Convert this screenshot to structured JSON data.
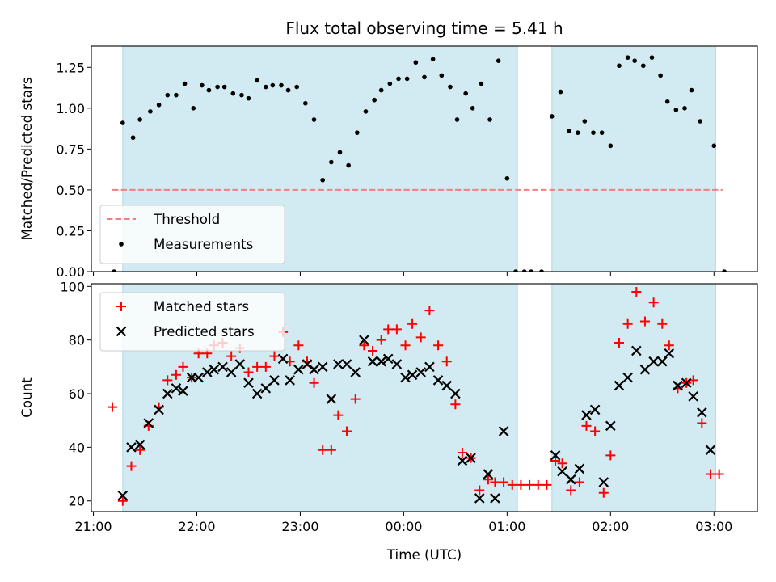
{
  "chart_data": [
    {
      "type": "scatter",
      "panel": "top",
      "title": "Flux total observing time = 5.41 h",
      "xlabel": "",
      "ylabel": "Matched/Predicted stars",
      "xlim_hours": [
        20.98,
        27.42
      ],
      "ylim": [
        0.0,
        1.38
      ],
      "yticks": [
        "0.00",
        "0.25",
        "0.50",
        "0.75",
        "1.00",
        "1.25"
      ],
      "legend_position": "lower left",
      "shaded_intervals": [
        [
          "21:17",
          "01:06"
        ],
        [
          "01:26",
          "03:01"
        ]
      ],
      "shade_color": "#add8e6",
      "threshold": {
        "name": "Threshold",
        "value": 0.5,
        "x_start": "21:11",
        "x_end": "03:05",
        "color": "#f08080"
      },
      "series": [
        {
          "name": "Measurements",
          "marker": "dot",
          "color": "#000000",
          "points": [
            [
              "21:12",
              0.0
            ],
            [
              "21:17",
              0.91
            ],
            [
              "21:23",
              0.82
            ],
            [
              "21:27",
              0.93
            ],
            [
              "21:33",
              0.98
            ],
            [
              "21:38",
              1.02
            ],
            [
              "21:43",
              1.08
            ],
            [
              "21:48",
              1.08
            ],
            [
              "21:53",
              1.15
            ],
            [
              "21:58",
              1.0
            ],
            [
              "22:03",
              1.14
            ],
            [
              "22:07",
              1.11
            ],
            [
              "22:12",
              1.13
            ],
            [
              "22:16",
              1.13
            ],
            [
              "22:21",
              1.09
            ],
            [
              "22:26",
              1.08
            ],
            [
              "22:30",
              1.06
            ],
            [
              "22:35",
              1.17
            ],
            [
              "22:40",
              1.13
            ],
            [
              "22:44",
              1.14
            ],
            [
              "22:49",
              1.14
            ],
            [
              "22:53",
              1.11
            ],
            [
              "22:58",
              1.13
            ],
            [
              "23:03",
              1.03
            ],
            [
              "23:08",
              0.93
            ],
            [
              "23:13",
              0.56
            ],
            [
              "23:18",
              0.67
            ],
            [
              "23:23",
              0.73
            ],
            [
              "23:28",
              0.65
            ],
            [
              "23:33",
              0.85
            ],
            [
              "23:38",
              0.98
            ],
            [
              "23:43",
              1.05
            ],
            [
              "23:47",
              1.11
            ],
            [
              "23:52",
              1.15
            ],
            [
              "23:57",
              1.18
            ],
            [
              "00:02",
              1.18
            ],
            [
              "00:07",
              1.28
            ],
            [
              "00:12",
              1.19
            ],
            [
              "00:17",
              1.3
            ],
            [
              "00:22",
              1.2
            ],
            [
              "00:27",
              1.13
            ],
            [
              "00:31",
              0.93
            ],
            [
              "00:36",
              1.09
            ],
            [
              "00:40",
              1.0
            ],
            [
              "00:45",
              1.15
            ],
            [
              "00:50",
              0.93
            ],
            [
              "00:55",
              1.29
            ],
            [
              "01:00",
              0.57
            ],
            [
              "01:05",
              0.0
            ],
            [
              "01:10",
              0.0
            ],
            [
              "01:14",
              0.0
            ],
            [
              "01:20",
              0.0
            ],
            [
              "01:26",
              0.95
            ],
            [
              "01:31",
              1.1
            ],
            [
              "01:36",
              0.86
            ],
            [
              "01:41",
              0.85
            ],
            [
              "01:45",
              0.92
            ],
            [
              "01:50",
              0.85
            ],
            [
              "01:55",
              0.85
            ],
            [
              "02:00",
              0.77
            ],
            [
              "02:05",
              1.26
            ],
            [
              "02:10",
              1.31
            ],
            [
              "02:14",
              1.29
            ],
            [
              "02:19",
              1.26
            ],
            [
              "02:24",
              1.31
            ],
            [
              "02:29",
              1.2
            ],
            [
              "02:33",
              1.04
            ],
            [
              "02:38",
              0.99
            ],
            [
              "02:43",
              1.0
            ],
            [
              "02:47",
              1.11
            ],
            [
              "02:52",
              0.92
            ],
            [
              "03:00",
              0.77
            ],
            [
              "03:06",
              0.0
            ]
          ]
        }
      ]
    },
    {
      "type": "scatter",
      "panel": "bottom",
      "title": "",
      "xlabel": "Time (UTC)",
      "ylabel": "Count",
      "xlim_hours": [
        20.98,
        27.42
      ],
      "ylim": [
        16,
        101
      ],
      "yticks": [
        "20",
        "40",
        "60",
        "80",
        "100"
      ],
      "xticks": [
        "21:00",
        "22:00",
        "23:00",
        "00:00",
        "01:00",
        "02:00",
        "03:00"
      ],
      "legend_position": "upper left",
      "shaded_intervals": [
        [
          "21:17",
          "01:06"
        ],
        [
          "01:26",
          "03:01"
        ]
      ],
      "shade_color": "#add8e6",
      "series": [
        {
          "name": "Matched stars",
          "marker": "plus",
          "color": "#ff0000",
          "points": [
            [
              "21:11",
              55
            ],
            [
              "21:17",
              20
            ],
            [
              "21:22",
              33
            ],
            [
              "21:27",
              39
            ],
            [
              "21:32",
              48
            ],
            [
              "21:38",
              55
            ],
            [
              "21:43",
              65
            ],
            [
              "21:48",
              67
            ],
            [
              "21:52",
              70
            ],
            [
              "21:57",
              66
            ],
            [
              "22:01",
              75
            ],
            [
              "22:06",
              75
            ],
            [
              "22:10",
              78
            ],
            [
              "22:15",
              79
            ],
            [
              "22:20",
              74
            ],
            [
              "22:25",
              77
            ],
            [
              "22:30",
              68
            ],
            [
              "22:35",
              70
            ],
            [
              "22:40",
              70
            ],
            [
              "22:45",
              74
            ],
            [
              "22:50",
              83
            ],
            [
              "22:54",
              72
            ],
            [
              "22:59",
              78
            ],
            [
              "23:04",
              72
            ],
            [
              "23:08",
              64
            ],
            [
              "23:13",
              39
            ],
            [
              "23:18",
              39
            ],
            [
              "23:22",
              52
            ],
            [
              "23:27",
              46
            ],
            [
              "23:32",
              58
            ],
            [
              "23:37",
              78
            ],
            [
              "23:42",
              76
            ],
            [
              "23:47",
              80
            ],
            [
              "23:51",
              84
            ],
            [
              "23:56",
              84
            ],
            [
              "00:01",
              78
            ],
            [
              "00:05",
              86
            ],
            [
              "00:10",
              81
            ],
            [
              "00:15",
              91
            ],
            [
              "00:20",
              78
            ],
            [
              "00:25",
              72
            ],
            [
              "00:30",
              56
            ],
            [
              "00:34",
              38
            ],
            [
              "00:39",
              36
            ],
            [
              "00:44",
              24
            ],
            [
              "00:49",
              28
            ],
            [
              "00:53",
              27
            ],
            [
              "00:58",
              27
            ],
            [
              "01:03",
              26
            ],
            [
              "01:08",
              26
            ],
            [
              "01:13",
              26
            ],
            [
              "01:18",
              26
            ],
            [
              "01:23",
              26
            ],
            [
              "01:28",
              35
            ],
            [
              "01:32",
              34
            ],
            [
              "01:37",
              24
            ],
            [
              "01:42",
              27
            ],
            [
              "01:46",
              48
            ],
            [
              "01:51",
              46
            ],
            [
              "01:56",
              23
            ],
            [
              "02:00",
              37
            ],
            [
              "02:05",
              79
            ],
            [
              "02:10",
              86
            ],
            [
              "02:15",
              98
            ],
            [
              "02:20",
              87
            ],
            [
              "02:25",
              94
            ],
            [
              "02:30",
              86
            ],
            [
              "02:34",
              78
            ],
            [
              "02:39",
              62
            ],
            [
              "02:44",
              64
            ],
            [
              "02:48",
              65
            ],
            [
              "02:53",
              49
            ],
            [
              "02:58",
              30
            ],
            [
              "03:03",
              30
            ]
          ]
        },
        {
          "name": "Predicted stars",
          "marker": "x",
          "color": "#000000",
          "points": [
            [
              "21:17",
              22
            ],
            [
              "21:22",
              40
            ],
            [
              "21:27",
              41
            ],
            [
              "21:32",
              49
            ],
            [
              "21:38",
              54
            ],
            [
              "21:43",
              60
            ],
            [
              "21:48",
              62
            ],
            [
              "21:52",
              61
            ],
            [
              "21:57",
              66
            ],
            [
              "22:01",
              66
            ],
            [
              "22:06",
              68
            ],
            [
              "22:10",
              69
            ],
            [
              "22:15",
              70
            ],
            [
              "22:20",
              68
            ],
            [
              "22:25",
              71
            ],
            [
              "22:30",
              64
            ],
            [
              "22:35",
              60
            ],
            [
              "22:40",
              62
            ],
            [
              "22:45",
              65
            ],
            [
              "22:50",
              73
            ],
            [
              "22:54",
              65
            ],
            [
              "22:59",
              69
            ],
            [
              "23:04",
              71
            ],
            [
              "23:08",
              69
            ],
            [
              "23:13",
              70
            ],
            [
              "23:18",
              58
            ],
            [
              "23:22",
              71
            ],
            [
              "23:27",
              71
            ],
            [
              "23:32",
              68
            ],
            [
              "23:37",
              80
            ],
            [
              "23:42",
              72
            ],
            [
              "23:47",
              72
            ],
            [
              "23:51",
              73
            ],
            [
              "23:56",
              71
            ],
            [
              "00:01",
              66
            ],
            [
              "00:05",
              67
            ],
            [
              "00:10",
              68
            ],
            [
              "00:15",
              70
            ],
            [
              "00:20",
              65
            ],
            [
              "00:25",
              63
            ],
            [
              "00:30",
              60
            ],
            [
              "00:34",
              35
            ],
            [
              "00:39",
              36
            ],
            [
              "00:44",
              21
            ],
            [
              "00:49",
              30
            ],
            [
              "00:53",
              21
            ],
            [
              "00:58",
              46
            ],
            [
              "01:28",
              37
            ],
            [
              "01:32",
              31
            ],
            [
              "01:37",
              28
            ],
            [
              "01:42",
              32
            ],
            [
              "01:46",
              52
            ],
            [
              "01:51",
              54
            ],
            [
              "01:56",
              27
            ],
            [
              "02:00",
              48
            ],
            [
              "02:05",
              63
            ],
            [
              "02:10",
              66
            ],
            [
              "02:15",
              76
            ],
            [
              "02:20",
              69
            ],
            [
              "02:25",
              72
            ],
            [
              "02:30",
              72
            ],
            [
              "02:34",
              75
            ],
            [
              "02:39",
              63
            ],
            [
              "02:44",
              64
            ],
            [
              "02:48",
              59
            ],
            [
              "02:53",
              53
            ],
            [
              "02:58",
              39
            ]
          ]
        }
      ]
    }
  ]
}
